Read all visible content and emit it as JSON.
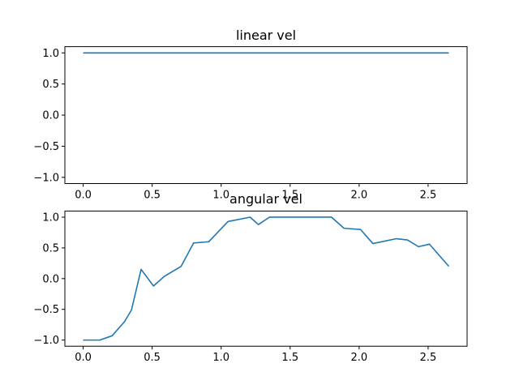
{
  "chart_data": [
    {
      "type": "line",
      "title": "linear vel",
      "xlabel": "",
      "ylabel": "",
      "xlim": [
        -0.1325,
        2.7825
      ],
      "ylim": [
        -1.1,
        1.1
      ],
      "xticks": [
        0.0,
        0.5,
        1.0,
        1.5,
        2.0,
        2.5
      ],
      "xtick_labels": [
        "0.0",
        "0.5",
        "1.0",
        "1.5",
        "2.0",
        "2.5"
      ],
      "yticks": [
        1.0,
        0.5,
        0.0,
        -0.5,
        -1.0
      ],
      "ytick_labels": [
        "1.0",
        "0.5",
        "0.0",
        "−0.5",
        "−1.0"
      ],
      "grid": false,
      "series": [
        {
          "color": "#1f77b4",
          "x": [
            0.0,
            2.65
          ],
          "y": [
            1.0,
            1.0
          ]
        }
      ]
    },
    {
      "type": "line",
      "title": "angular vel",
      "xlabel": "",
      "ylabel": "",
      "xlim": [
        -0.1325,
        2.7825
      ],
      "ylim": [
        -1.1,
        1.1
      ],
      "xticks": [
        0.0,
        0.5,
        1.0,
        1.5,
        2.0,
        2.5
      ],
      "xtick_labels": [
        "0.0",
        "0.5",
        "1.0",
        "1.5",
        "2.0",
        "2.5"
      ],
      "yticks": [
        1.0,
        0.5,
        0.0,
        -0.5,
        -1.0
      ],
      "ytick_labels": [
        "1.0",
        "0.5",
        "0.0",
        "−0.5",
        "−1.0"
      ],
      "grid": false,
      "series": [
        {
          "color": "#1f77b4",
          "x": [
            0.0,
            0.12,
            0.21,
            0.3,
            0.35,
            0.42,
            0.51,
            0.59,
            0.71,
            0.8,
            0.91,
            1.05,
            1.21,
            1.27,
            1.35,
            1.8,
            1.89,
            2.01,
            2.1,
            2.27,
            2.35,
            2.43,
            2.51,
            2.65
          ],
          "y": [
            -1.0,
            -1.0,
            -0.93,
            -0.7,
            -0.51,
            0.15,
            -0.12,
            0.04,
            0.2,
            0.58,
            0.6,
            0.93,
            1.0,
            0.88,
            1.0,
            1.0,
            0.82,
            0.8,
            0.57,
            0.65,
            0.63,
            0.52,
            0.56,
            0.2
          ]
        }
      ]
    }
  ]
}
